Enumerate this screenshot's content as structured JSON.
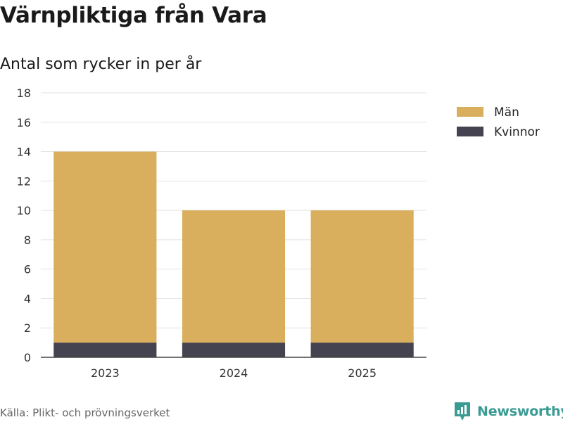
{
  "title": "Värnpliktiga från Vara",
  "subtitle": "Antal som rycker in per år",
  "source": "Källa: Plikt- och prövningsverket",
  "brand": "Newsworthy",
  "colors": {
    "man": "#d9ae5c",
    "kvinnor": "#45434f",
    "grid": "#e3e3e3",
    "axis": "#444444",
    "brand": "#3a9b93"
  },
  "chart_data": {
    "type": "bar",
    "stacked": true,
    "categories": [
      "2023",
      "2024",
      "2025"
    ],
    "series": [
      {
        "name": "Kvinnor",
        "values": [
          1,
          1,
          1
        ],
        "color": "#45434f"
      },
      {
        "name": "Män",
        "values": [
          13,
          9,
          9
        ],
        "color": "#d9ae5c"
      }
    ],
    "legend": [
      "Män",
      "Kvinnor"
    ],
    "ylim": [
      0,
      18
    ],
    "yticks": [
      0,
      2,
      4,
      6,
      8,
      10,
      12,
      14,
      16,
      18
    ],
    "xlabel": "",
    "ylabel": "",
    "grid": true,
    "legend_position": "top-right"
  }
}
